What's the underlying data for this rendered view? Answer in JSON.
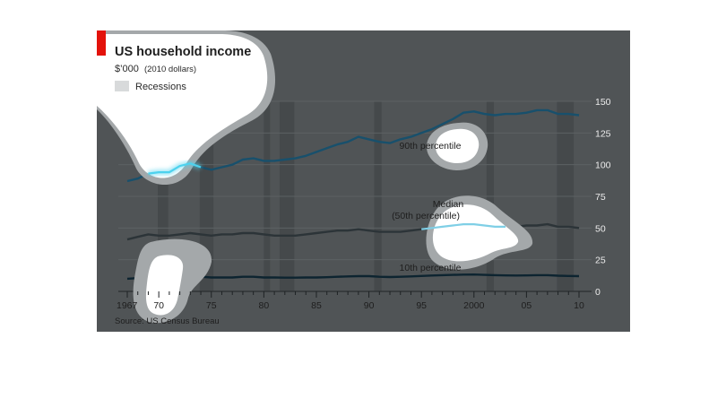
{
  "chart_data": {
    "type": "line",
    "title": "US household income",
    "subtitle_main": "$’000",
    "subtitle_paren": "(2010 dollars)",
    "legend_label": "Recessions",
    "source": "Source: US Census Bureau",
    "xlabel": "",
    "ylabel": "",
    "xlim": [
      1967,
      2010
    ],
    "ylim": [
      0,
      150
    ],
    "y_ticks": [
      0,
      25,
      50,
      75,
      100,
      125,
      150
    ],
    "x_ticks": [
      {
        "year": 1967,
        "label": "1967"
      },
      {
        "year": 1970,
        "label": "70"
      },
      {
        "year": 1975,
        "label": "75"
      },
      {
        "year": 1980,
        "label": "80"
      },
      {
        "year": 1985,
        "label": "85"
      },
      {
        "year": 1990,
        "label": "90"
      },
      {
        "year": 1995,
        "label": "95"
      },
      {
        "year": 2000,
        "label": "2000"
      },
      {
        "year": 2005,
        "label": "05"
      },
      {
        "year": 2010,
        "label": "10"
      }
    ],
    "recessions": [
      [
        1969.9,
        1970.9
      ],
      [
        1973.9,
        1975.2
      ],
      [
        1980.0,
        1980.6
      ],
      [
        1981.5,
        1982.9
      ],
      [
        1990.5,
        1991.2
      ],
      [
        2001.2,
        2001.9
      ],
      [
        2007.9,
        2009.5
      ]
    ],
    "grid": "horizontal",
    "series": [
      {
        "name": "90th percentile",
        "label": "90th percentile",
        "color": "#18506c",
        "values": [
          [
            1967,
            87
          ],
          [
            1968,
            89
          ],
          [
            1969,
            93
          ],
          [
            1970,
            94
          ],
          [
            1971,
            94
          ],
          [
            1972,
            99
          ],
          [
            1973,
            101
          ],
          [
            1974,
            98
          ],
          [
            1975,
            96
          ],
          [
            1976,
            98
          ],
          [
            1977,
            100
          ],
          [
            1978,
            104
          ],
          [
            1979,
            105
          ],
          [
            1980,
            103
          ],
          [
            1981,
            103
          ],
          [
            1982,
            104
          ],
          [
            1983,
            105
          ],
          [
            1984,
            107
          ],
          [
            1985,
            110
          ],
          [
            1986,
            113
          ],
          [
            1987,
            116
          ],
          [
            1988,
            118
          ],
          [
            1989,
            122
          ],
          [
            1990,
            120
          ],
          [
            1991,
            118
          ],
          [
            1992,
            117
          ],
          [
            1993,
            120
          ],
          [
            1994,
            122
          ],
          [
            1995,
            125
          ],
          [
            1996,
            128
          ],
          [
            1997,
            132
          ],
          [
            1998,
            136
          ],
          [
            1999,
            141
          ],
          [
            2000,
            142
          ],
          [
            2001,
            140
          ],
          [
            2002,
            139
          ],
          [
            2003,
            140
          ],
          [
            2004,
            140
          ],
          [
            2005,
            141
          ],
          [
            2006,
            143
          ],
          [
            2007,
            143
          ],
          [
            2008,
            140
          ],
          [
            2009,
            140
          ],
          [
            2010,
            139
          ]
        ]
      },
      {
        "name": "Median (50th percentile)",
        "label_line1": "Median",
        "label_line2": "(50th percentile)",
        "color": "#2c3438",
        "values": [
          [
            1967,
            41
          ],
          [
            1968,
            43
          ],
          [
            1969,
            45
          ],
          [
            1970,
            44
          ],
          [
            1971,
            44
          ],
          [
            1972,
            45
          ],
          [
            1973,
            46
          ],
          [
            1974,
            45
          ],
          [
            1975,
            44
          ],
          [
            1976,
            45
          ],
          [
            1977,
            45
          ],
          [
            1978,
            46
          ],
          [
            1979,
            46
          ],
          [
            1980,
            45
          ],
          [
            1981,
            44
          ],
          [
            1982,
            44
          ],
          [
            1983,
            44
          ],
          [
            1984,
            45
          ],
          [
            1985,
            46
          ],
          [
            1986,
            47
          ],
          [
            1987,
            48
          ],
          [
            1988,
            48
          ],
          [
            1989,
            49
          ],
          [
            1990,
            48
          ],
          [
            1991,
            47
          ],
          [
            1992,
            47
          ],
          [
            1993,
            47
          ],
          [
            1994,
            48
          ],
          [
            1995,
            49
          ],
          [
            1996,
            50
          ],
          [
            1997,
            51
          ],
          [
            1998,
            52
          ],
          [
            1999,
            53
          ],
          [
            2000,
            53
          ],
          [
            2001,
            52
          ],
          [
            2002,
            51
          ],
          [
            2003,
            51
          ],
          [
            2004,
            51
          ],
          [
            2005,
            52
          ],
          [
            2006,
            52
          ],
          [
            2007,
            53
          ],
          [
            2008,
            51
          ],
          [
            2009,
            51
          ],
          [
            2010,
            50
          ]
        ]
      },
      {
        "name": "10th percentile",
        "label": "10th percentile",
        "color": "#0d2430",
        "values": [
          [
            1967,
            10
          ],
          [
            1968,
            10.5
          ],
          [
            1969,
            11
          ],
          [
            1970,
            11
          ],
          [
            1971,
            11
          ],
          [
            1972,
            11
          ],
          [
            1973,
            11.5
          ],
          [
            1974,
            11.5
          ],
          [
            1975,
            11
          ],
          [
            1976,
            11
          ],
          [
            1977,
            11
          ],
          [
            1978,
            11.5
          ],
          [
            1979,
            11.5
          ],
          [
            1980,
            11
          ],
          [
            1981,
            11
          ],
          [
            1982,
            10.8
          ],
          [
            1983,
            10.8
          ],
          [
            1984,
            11
          ],
          [
            1985,
            11
          ],
          [
            1986,
            11.2
          ],
          [
            1987,
            11.5
          ],
          [
            1988,
            11.8
          ],
          [
            1989,
            12
          ],
          [
            1990,
            12
          ],
          [
            1991,
            11.5
          ],
          [
            1992,
            11.3
          ],
          [
            1993,
            11.5
          ],
          [
            1994,
            11.8
          ],
          [
            1995,
            12.2
          ],
          [
            1996,
            12.5
          ],
          [
            1997,
            12.8
          ],
          [
            1998,
            13
          ],
          [
            1999,
            13.2
          ],
          [
            2000,
            13.3
          ],
          [
            2001,
            13
          ],
          [
            2002,
            12.8
          ],
          [
            2003,
            12.6
          ],
          [
            2004,
            12.5
          ],
          [
            2005,
            12.6
          ],
          [
            2006,
            12.8
          ],
          [
            2007,
            12.8
          ],
          [
            2008,
            12.4
          ],
          [
            2009,
            12.2
          ],
          [
            2010,
            12
          ]
        ]
      }
    ]
  },
  "colors": {
    "panel": "#505456",
    "accent": "#e3120b",
    "highlight": "#4dd2ee",
    "text_light": "#f2f2f2",
    "text_dark": "#1e1e1e"
  }
}
